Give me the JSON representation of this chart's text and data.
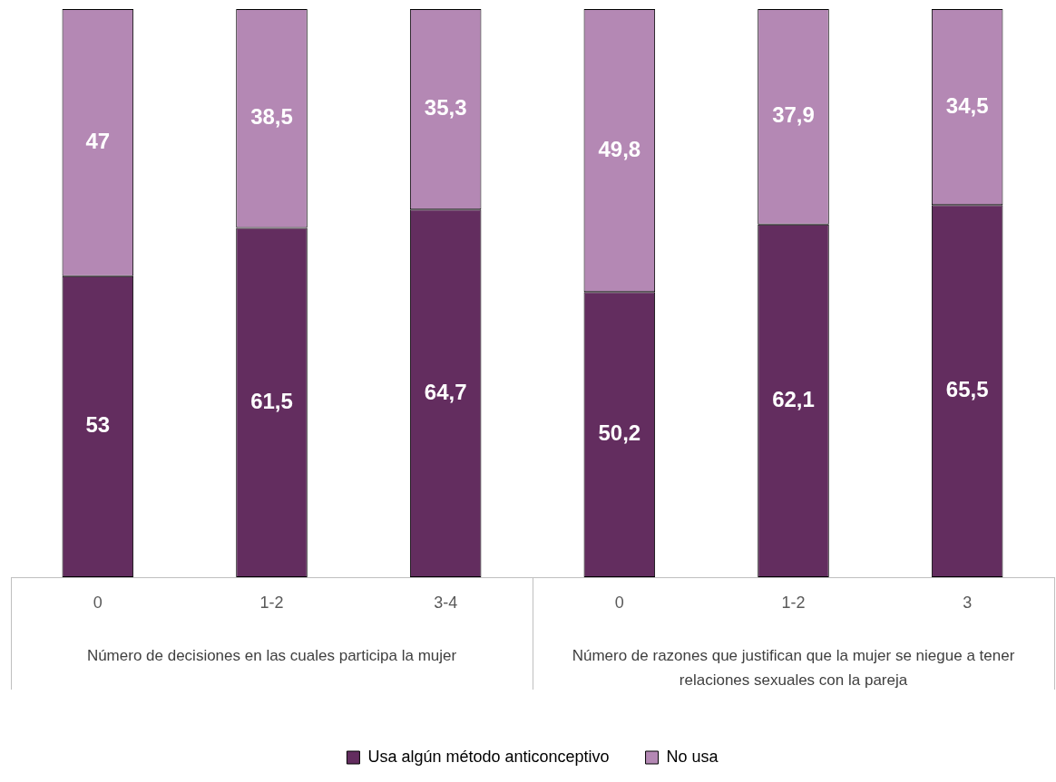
{
  "chart_data": {
    "type": "bar",
    "stacked": true,
    "legend": "bottom",
    "tick_labels": "x",
    "categories": [
      "0",
      "1-2",
      "3-4",
      "0",
      "1-2",
      "3"
    ],
    "ylim": [
      0,
      100
    ],
    "series": [
      {
        "name": "Usa algún método anticonceptivo",
        "color": "#632d5f",
        "values": [
          53,
          61.5,
          64.7,
          50.2,
          62.1,
          65.5
        ],
        "value_labels": [
          "53",
          "61,5",
          "64,7",
          "50,2",
          "62,1",
          "65,5"
        ]
      },
      {
        "name": "No usa",
        "color": "#b488b4",
        "values": [
          47,
          38.5,
          35.3,
          49.8,
          37.9,
          34.5
        ],
        "value_labels": [
          "47",
          "38,5",
          "35,3",
          "49,8",
          "37,9",
          "34,5"
        ]
      }
    ],
    "annotations": [
      "Número de decisiones en las cuales participa la mujer",
      "Número de razones que justifican que la mujer se niegue a tener relaciones sexuales con la pareja"
    ]
  }
}
